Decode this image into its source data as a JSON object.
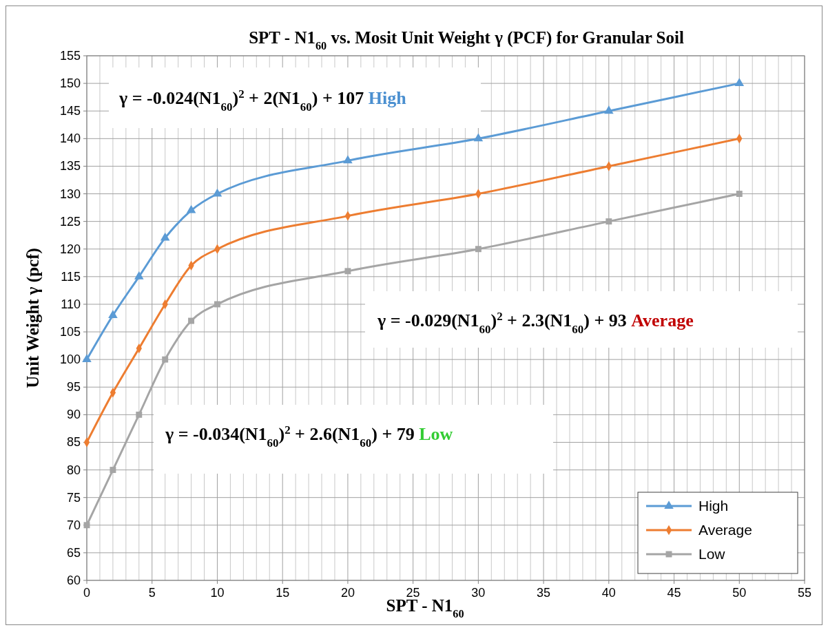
{
  "chart_data": {
    "type": "line",
    "title": "SPT - N1$_{60}$ vs. Mosit Unit Weight γ (PCF) for Granular Soil",
    "xlabel": "SPT - N1$_{60}$",
    "ylabel": "Unit Weight γ (pcf)",
    "x": [
      0,
      2,
      4,
      6,
      8,
      10,
      20,
      30,
      40,
      50
    ],
    "series": [
      {
        "name": "High",
        "color": "#5b9bd5",
        "marker": "triangle",
        "values": [
          100,
          108,
          115,
          122,
          127,
          130,
          136,
          140,
          145,
          150
        ]
      },
      {
        "name": "Average",
        "color": "#ed7d31",
        "marker": "diamond",
        "values": [
          85,
          94,
          102,
          110,
          117,
          120,
          126,
          130,
          135,
          140
        ]
      },
      {
        "name": "Low",
        "color": "#a5a5a5",
        "marker": "square",
        "values": [
          70,
          80,
          90,
          100,
          107,
          110,
          116,
          120,
          125,
          130
        ]
      }
    ],
    "xlim": [
      0,
      55
    ],
    "xticks": [
      0,
      5,
      10,
      15,
      20,
      25,
      30,
      35,
      40,
      45,
      50,
      55
    ],
    "ylim": [
      60,
      155
    ],
    "yticks": [
      60,
      65,
      70,
      75,
      80,
      85,
      90,
      95,
      100,
      105,
      110,
      115,
      120,
      125,
      130,
      135,
      140,
      145,
      150,
      155
    ],
    "grid": true,
    "legend": "bottom right",
    "annotations": [
      "γ = -0.024(N1$_{60}$)$^{2}$ + 2(N1$_{60}$) + 107 High",
      "γ = -0.029(N1$_{60}$)$^{2}$ + 2.3(N1$_{60}$) + 93 Average",
      "γ = -0.034(N1$_{60}$)$^{2}$ + 2.6(N1$_{60}$) + 79 Low"
    ]
  }
}
